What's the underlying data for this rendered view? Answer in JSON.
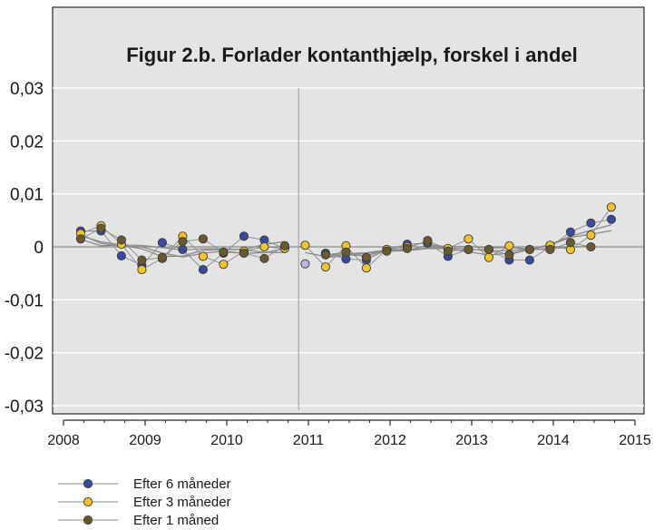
{
  "chart_data": {
    "type": "scatter",
    "title": "Figur 2.b.  Forlader kontanthjælp, forskel i andel",
    "xlabel": "",
    "ylabel": "",
    "xlim": [
      2008,
      2015
    ],
    "ylim": [
      -0.03,
      0.03
    ],
    "x_ticks": [
      "2008",
      "2009",
      "2010",
      "2011",
      "2012",
      "2013",
      "2014",
      "2015"
    ],
    "y_ticks": [
      "0,03",
      "0,02",
      "0,01",
      "0",
      "-0,01",
      "-0,02",
      "-0,03"
    ],
    "reference_line_x": 2010.88,
    "grid": true,
    "legend_position": "bottom-left",
    "series": [
      {
        "name": "Efter 6 måneder",
        "color": "#3a4a9c",
        "x": [
          2008.21,
          2008.46,
          2008.71,
          2008.96,
          2009.21,
          2009.46,
          2009.71,
          2009.96,
          2010.21,
          2010.46,
          2010.71,
          2011.21,
          2011.46,
          2011.71,
          2011.96,
          2012.21,
          2012.46,
          2012.71,
          2012.96,
          2013.21,
          2013.46,
          2013.71,
          2013.96,
          2014.21,
          2014.46,
          2014.71
        ],
        "values": [
          0.003,
          0.003,
          -0.0017,
          -0.0035,
          0.0008,
          -0.0005,
          -0.0043,
          -0.0012,
          0.002,
          0.0013,
          -0.0003,
          -0.0012,
          -0.0023,
          -0.0025,
          -0.0005,
          0.0005,
          0.0007,
          -0.0018,
          -0.0005,
          -0.0005,
          -0.0025,
          -0.0025,
          0.0,
          0.0028,
          0.0045,
          0.0052
        ]
      },
      {
        "name": "Efter 3 måneder",
        "color": "#f2c32e",
        "x": [
          2008.21,
          2008.46,
          2008.71,
          2008.96,
          2009.21,
          2009.46,
          2009.71,
          2009.96,
          2010.21,
          2010.46,
          2010.71,
          2010.96,
          2011.21,
          2011.46,
          2011.71,
          2011.96,
          2012.21,
          2012.46,
          2012.71,
          2012.96,
          2013.21,
          2013.46,
          2013.71,
          2013.96,
          2014.21,
          2014.46,
          2014.71
        ],
        "values": [
          0.0025,
          0.004,
          0.0005,
          -0.0043,
          -0.0022,
          0.002,
          -0.0018,
          -0.0033,
          -0.0008,
          0.0,
          -0.0003,
          0.0003,
          -0.0038,
          0.0002,
          -0.004,
          -0.0005,
          0.0,
          0.001,
          -0.0003,
          0.0015,
          -0.002,
          0.0002,
          -0.0005,
          0.0003,
          -0.0005,
          0.0022,
          0.0075
        ]
      },
      {
        "name": "Efter 1 måned",
        "color": "#6b5a2e",
        "x": [
          2008.21,
          2008.46,
          2008.71,
          2008.96,
          2009.21,
          2009.46,
          2009.71,
          2009.96,
          2010.21,
          2010.46,
          2010.71,
          2011.21,
          2011.46,
          2011.71,
          2011.96,
          2012.21,
          2012.46,
          2012.71,
          2012.96,
          2013.21,
          2013.46,
          2013.71,
          2013.96,
          2014.21,
          2014.46
        ],
        "values": [
          0.0015,
          0.0035,
          0.0013,
          -0.0025,
          -0.002,
          0.001,
          0.0015,
          -0.001,
          -0.0012,
          -0.0022,
          0.0002,
          -0.0015,
          -0.001,
          -0.002,
          -0.0008,
          -0.0003,
          0.0012,
          -0.0008,
          -0.0005,
          -0.0005,
          -0.0015,
          -0.0005,
          -0.0005,
          0.0008,
          0.0
        ]
      },
      {
        "name": "",
        "color": "#b9b6da",
        "x": [
          2010.96
        ],
        "values": [
          -0.0032
        ]
      }
    ],
    "trend_lines_color": "#8a8a8a"
  }
}
